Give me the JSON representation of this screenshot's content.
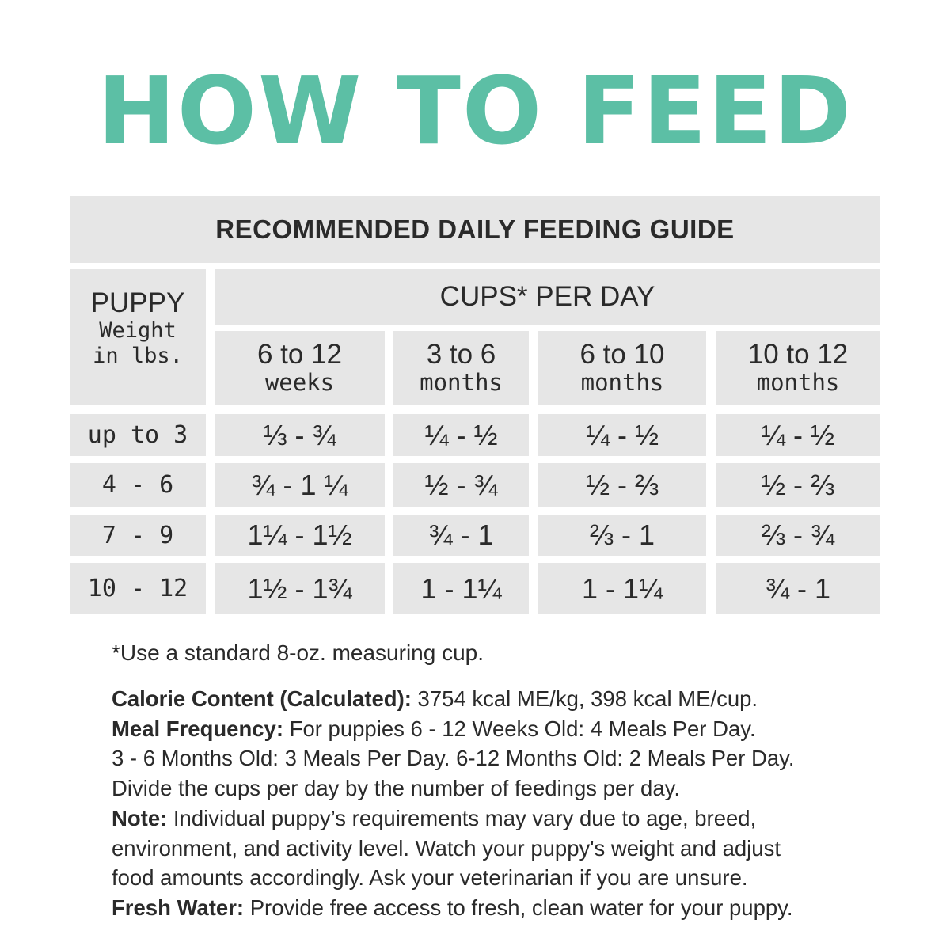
{
  "title": "HOW TO FEED",
  "guide_title": "RECOMMENDED DAILY FEEDING GUIDE",
  "weight_header": {
    "line1": "PUPPY",
    "line2": "Weight",
    "line3": "in lbs."
  },
  "cups_header": "CUPS* PER DAY",
  "age_columns": [
    {
      "line1": "6 to 12",
      "line2": "weeks"
    },
    {
      "line1": "3 to 6",
      "line2": "months"
    },
    {
      "line1": "6 to 10",
      "line2": "months"
    },
    {
      "line1": "10 to 12",
      "line2": "months"
    }
  ],
  "rows": [
    {
      "weight": "up to 3",
      "values": [
        "⅓ - ¾",
        "¼ - ½",
        "¼ - ½",
        "¼ - ½"
      ]
    },
    {
      "weight": "4 - 6",
      "values": [
        "¾ - 1 ¼",
        "½ - ¾",
        "½ - ⅔",
        "½ - ⅔"
      ]
    },
    {
      "weight": "7 - 9",
      "values": [
        "1¼ - 1½",
        "¾ - 1",
        "⅔ - 1",
        "⅔ - ¾"
      ]
    },
    {
      "weight": "10 - 12",
      "values": [
        "1½ - 1¾",
        "1 - 1¼",
        "1 - 1¼",
        "¾ - 1"
      ]
    }
  ],
  "footnote": "*Use a standard 8-oz. measuring cup.",
  "calorie": {
    "label": "Calorie Content (Calculated):",
    "text": " 3754 kcal ME/kg, 398 kcal ME/cup."
  },
  "meal": {
    "label": "Meal Frequency:",
    "line1": " For puppies 6 - 12 Weeks Old: 4 Meals Per Day.",
    "line2": "3 - 6 Months Old: 3 Meals Per Day. 6-12 Months Old: 2 Meals Per Day.",
    "line3": "Divide the cups per day by the number of feedings per day."
  },
  "note": {
    "label": "Note:",
    "line1": "  Individual puppy’s requirements may vary due to age, breed,",
    "line2": "environment, and activity level. Watch your puppy's weight and adjust",
    "line3": "food amounts accordingly. Ask your veterinarian if you are unsure."
  },
  "water": {
    "label": "Fresh Water:",
    "text": " Provide free access to fresh, clean water for your puppy."
  },
  "colors": {
    "title": "#5cbfa5",
    "cell_background": "#e6e6e6",
    "text": "#2a2a2a"
  }
}
